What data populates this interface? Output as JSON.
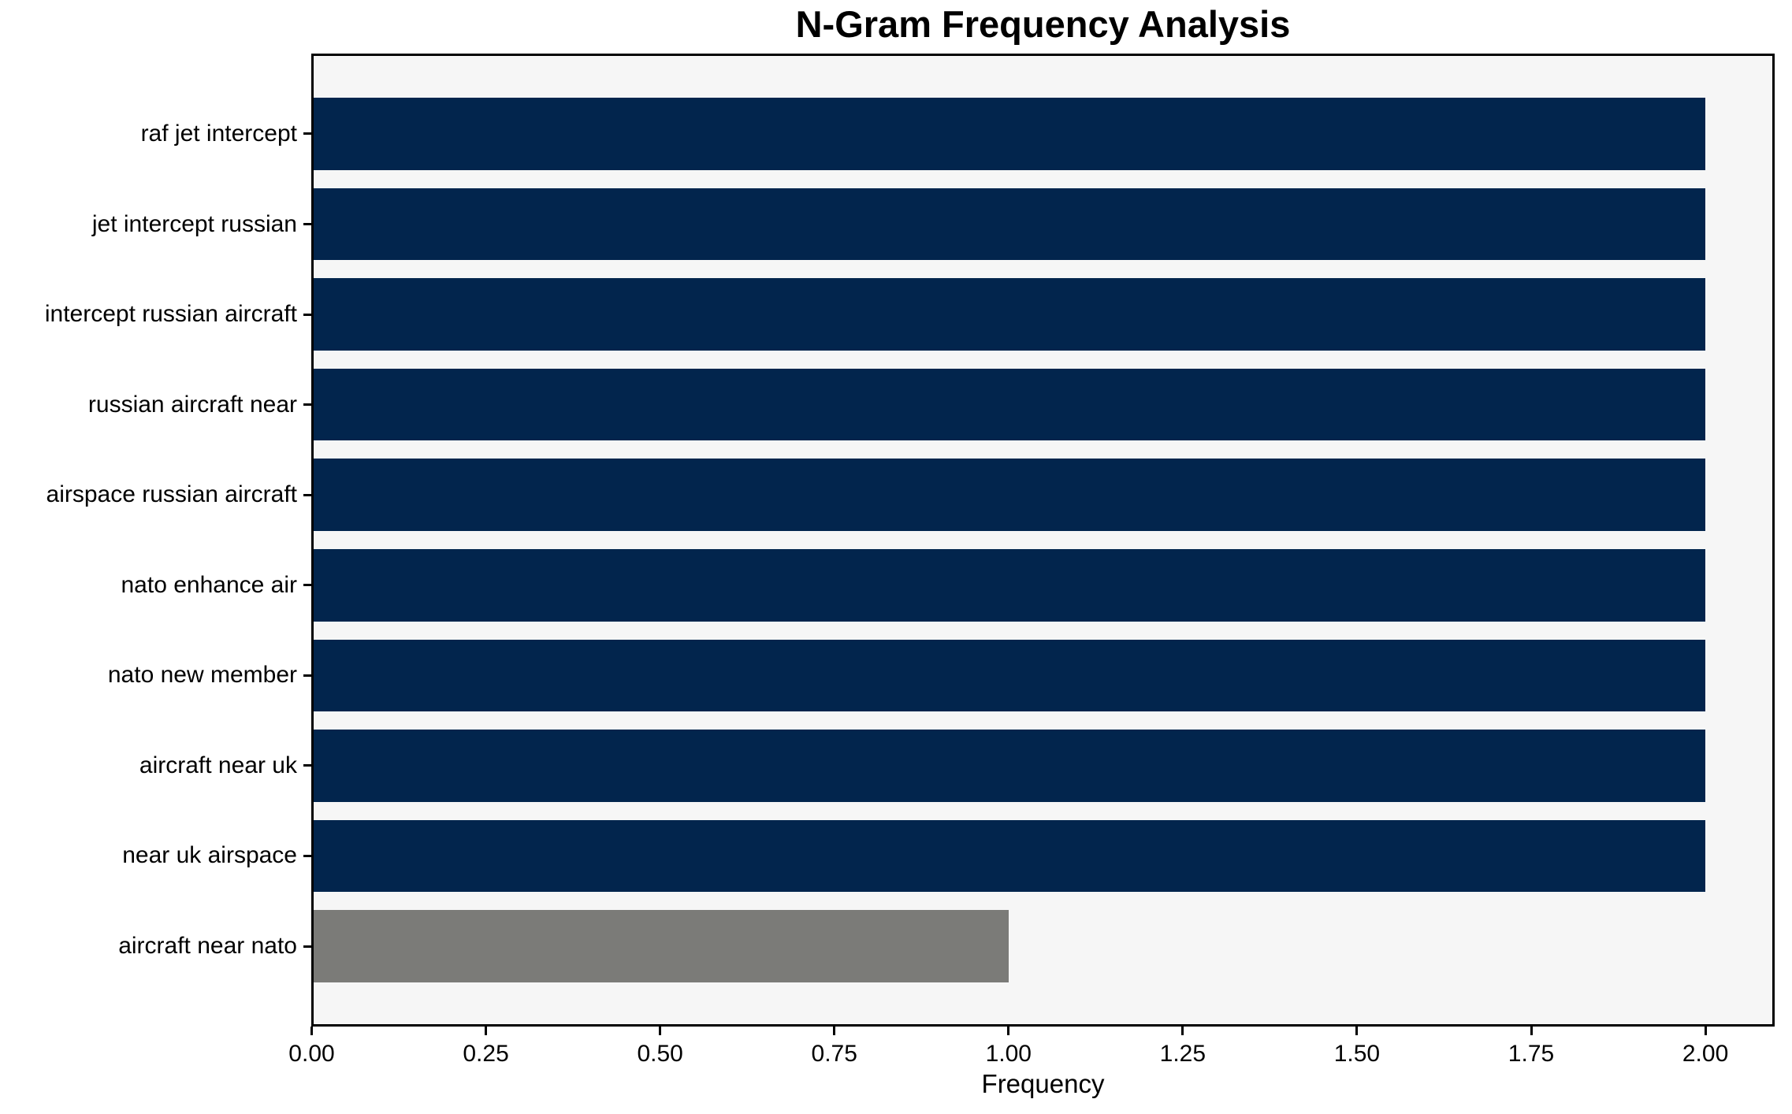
{
  "page": {
    "background": "#ffffff"
  },
  "chart_data": {
    "type": "bar",
    "orientation": "horizontal",
    "title": "N-Gram Frequency Analysis",
    "xlabel": "Frequency",
    "ylabel": "",
    "categories": [
      "raf jet intercept",
      "jet intercept russian",
      "intercept russian aircraft",
      "russian aircraft near",
      "airspace russian aircraft",
      "nato enhance air",
      "nato new member",
      "aircraft near uk",
      "near uk airspace",
      "aircraft near nato"
    ],
    "values": [
      2,
      2,
      2,
      2,
      2,
      2,
      2,
      2,
      2,
      1
    ],
    "bar_colors": [
      "#02254d",
      "#02254d",
      "#02254d",
      "#02254d",
      "#02254d",
      "#02254d",
      "#02254d",
      "#02254d",
      "#02254d",
      "#7b7b78"
    ],
    "xlim": [
      0,
      2.1
    ],
    "xticks": [
      {
        "value": 0.0,
        "label": "0.00"
      },
      {
        "value": 0.25,
        "label": "0.25"
      },
      {
        "value": 0.5,
        "label": "0.50"
      },
      {
        "value": 0.75,
        "label": "0.75"
      },
      {
        "value": 1.0,
        "label": "1.00"
      },
      {
        "value": 1.25,
        "label": "1.25"
      },
      {
        "value": 1.5,
        "label": "1.50"
      },
      {
        "value": 1.75,
        "label": "1.75"
      },
      {
        "value": 2.0,
        "label": "2.00"
      }
    ],
    "grid": false,
    "legend": null,
    "colors": {
      "bar_primary": "#02254d",
      "bar_highlight": "#7b7b78",
      "plot_background": "#f6f6f6",
      "axis": "#000000",
      "text": "#000000"
    }
  }
}
